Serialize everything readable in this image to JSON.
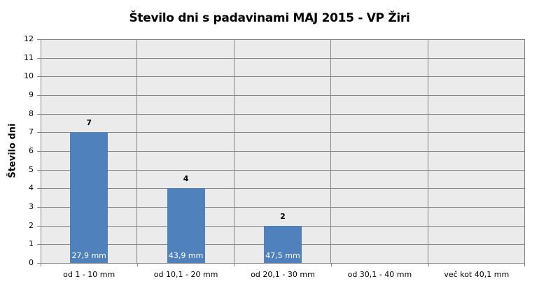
{
  "chart_data": {
    "type": "bar",
    "title": "Število dni s padavinami  MAJ 2015 - VP Žiri",
    "xlabel": "",
    "ylabel": "Število dni",
    "ylim": [
      0,
      12
    ],
    "yticks": [
      "0",
      "1",
      "2",
      "3",
      "4",
      "5",
      "6",
      "7",
      "8",
      "9",
      "10",
      "11",
      "12"
    ],
    "grid": true,
    "categories": [
      "od 1 - 10 mm",
      "od 10,1 - 20 mm",
      "od 20,1 - 30 mm",
      "od 30,1 - 40 mm",
      "več kot 40,1 mm"
    ],
    "values": [
      7,
      4,
      2,
      0,
      0
    ],
    "value_labels": [
      "7",
      "4",
      "2",
      "",
      ""
    ],
    "inner_labels": [
      "27,9 mm",
      "43,9 mm",
      "47,5 mm",
      "",
      ""
    ],
    "bar_color": "#4f81bd",
    "background_color": "#ebebeb",
    "legend": null
  }
}
